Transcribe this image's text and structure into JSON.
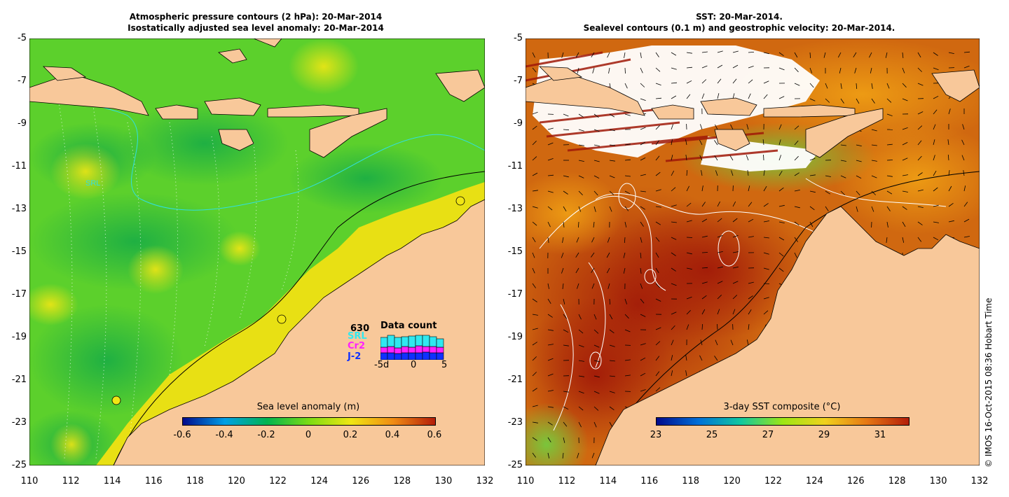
{
  "left_panel": {
    "title_line1": "Atmospheric pressure contours (2 hPa): 20-Mar-2014",
    "title_line2": "Isostatically adjusted sea level anomaly: 20-Mar-2014",
    "colorbar": {
      "title": "Sea level anomaly (m)",
      "ticks": [
        "-0.6",
        "-0.4",
        "-0.2",
        "0",
        "0.2",
        "0.4",
        "0.6"
      ],
      "colors": [
        "#000a8c",
        "#00a0e6",
        "#00b450",
        "#7cdc14",
        "#f0e614",
        "#f08c14",
        "#b41e0a"
      ]
    },
    "data_count": {
      "title": "Data count",
      "total": "630",
      "missions": [
        "SRL",
        "Cr2",
        "J-2"
      ],
      "mission_colors": [
        "#30e8f0",
        "#ff20ff",
        "#1030ff"
      ],
      "x_ticks": [
        "-5d",
        "0",
        "5"
      ]
    },
    "contour_labels": [
      "SRL"
    ]
  },
  "right_panel": {
    "title_line1": "SST: 20-Mar-2014.",
    "title_line2": "Sealevel contours (0.1 m) and geostrophic velocity: 20-Mar-2014.",
    "colorbar": {
      "title": "3-day SST composite (°C)",
      "ticks": [
        "23",
        "25",
        "27",
        "29",
        "31"
      ],
      "colors": [
        "#000a8c",
        "#0070d8",
        "#10c8a0",
        "#9ce614",
        "#f0d21e",
        "#e67814",
        "#b41e0a"
      ]
    }
  },
  "axes": {
    "y_ticks": [
      "-5",
      "-7",
      "-9",
      "-11",
      "-13",
      "-15",
      "-17",
      "-19",
      "-21",
      "-23",
      "-25"
    ],
    "x_ticks": [
      "110",
      "112",
      "114",
      "116",
      "118",
      "120",
      "122",
      "124",
      "126",
      "128",
      "130",
      "132"
    ],
    "lon_range": [
      110,
      132
    ],
    "lat_range": [
      -25,
      -5
    ]
  },
  "credit": "© IMOS 16-Oct-2015 08:36 Hobart Time",
  "colors": {
    "land": "#f8c89a",
    "ocean_left": "#5cd02c",
    "ocean_right": "#c8460a"
  }
}
